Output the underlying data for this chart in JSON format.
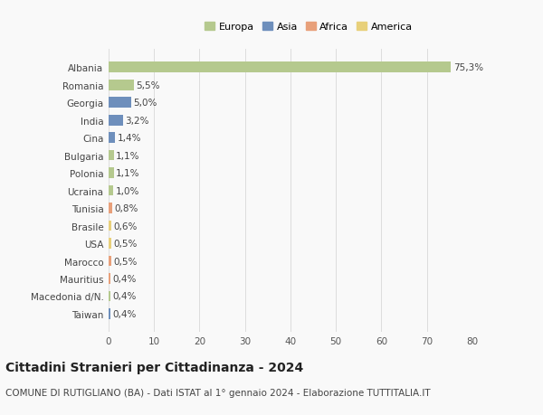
{
  "countries": [
    "Albania",
    "Romania",
    "Georgia",
    "India",
    "Cina",
    "Bulgaria",
    "Polonia",
    "Ucraina",
    "Tunisia",
    "Brasile",
    "USA",
    "Marocco",
    "Mauritius",
    "Macedonia d/N.",
    "Taiwan"
  ],
  "values": [
    75.3,
    5.5,
    5.0,
    3.2,
    1.4,
    1.1,
    1.1,
    1.0,
    0.8,
    0.6,
    0.5,
    0.5,
    0.4,
    0.4,
    0.4
  ],
  "labels": [
    "75,3%",
    "5,5%",
    "5,0%",
    "3,2%",
    "1,4%",
    "1,1%",
    "1,1%",
    "1,0%",
    "0,8%",
    "0,6%",
    "0,5%",
    "0,5%",
    "0,4%",
    "0,4%",
    "0,4%"
  ],
  "continents": [
    "Europa",
    "Europa",
    "Asia",
    "Asia",
    "Asia",
    "Europa",
    "Europa",
    "Europa",
    "Africa",
    "America",
    "America",
    "Africa",
    "Africa",
    "Europa",
    "Asia"
  ],
  "continent_colors": {
    "Europa": "#b5c98e",
    "Asia": "#6e8fbc",
    "Africa": "#e8a07a",
    "America": "#e8d07a"
  },
  "legend_order": [
    "Europa",
    "Asia",
    "Africa",
    "America"
  ],
  "xlim": [
    0,
    80
  ],
  "xticks": [
    0,
    10,
    20,
    30,
    40,
    50,
    60,
    70,
    80
  ],
  "title": "Cittadini Stranieri per Cittadinanza - 2024",
  "subtitle": "COMUNE DI RUTIGLIANO (BA) - Dati ISTAT al 1° gennaio 2024 - Elaborazione TUTTITALIA.IT",
  "bg_color": "#f9f9f9",
  "grid_color": "#dddddd",
  "title_fontsize": 10,
  "subtitle_fontsize": 7.5,
  "label_fontsize": 7.5,
  "tick_fontsize": 7.5,
  "legend_fontsize": 8
}
